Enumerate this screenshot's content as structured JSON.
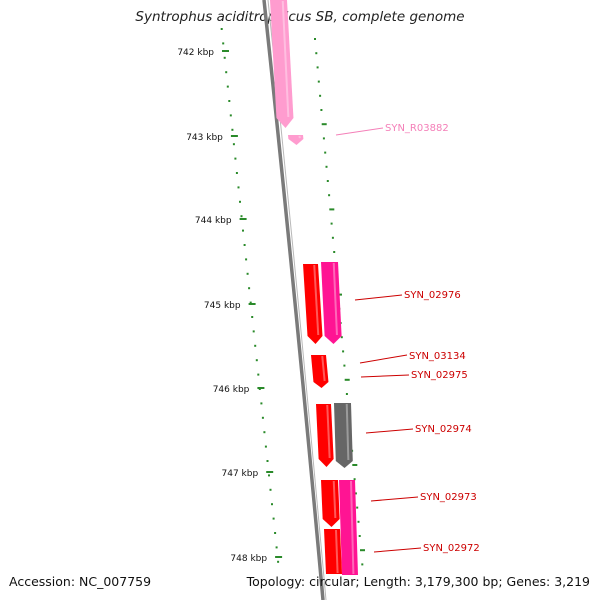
{
  "title": "Syntrophus aciditrophicus SB, complete genome",
  "accession": "Accession: NC_007759",
  "summary": "Topology: circular; Length: 3,179,300 bp; Genes: 3,219",
  "scale_labels": [
    "742 kbp",
    "743 kbp",
    "744 kbp",
    "745 kbp",
    "746 kbp",
    "747 kbp",
    "748 kbp"
  ],
  "colors": {
    "backbone": "#7a7a7a",
    "tick": "#2a8a2a",
    "gene_red": "#ff0000",
    "gene_magenta": "#ff1493",
    "gene_light_pink": "#ff9ccf",
    "gene_gray": "#666666",
    "label_red": "#cc0000",
    "label_pink": "#f47fb8"
  },
  "genes": [
    {
      "label": "SYN_R03882",
      "color": "label_pink"
    },
    {
      "label": "SYN_02976",
      "color": "label_red"
    },
    {
      "label": "SYN_03134",
      "color": "label_red"
    },
    {
      "label": "SYN_02975",
      "color": "label_red"
    },
    {
      "label": "SYN_02974",
      "color": "label_red"
    },
    {
      "label": "SYN_02973",
      "color": "label_red"
    },
    {
      "label": "SYN_02972",
      "color": "label_red"
    }
  ]
}
